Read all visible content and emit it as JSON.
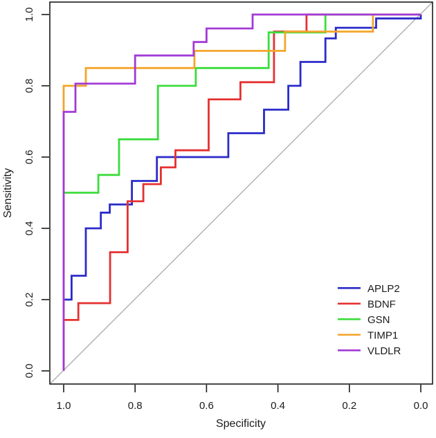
{
  "chart_data": {
    "type": "line",
    "subtype": "roc_step_curves",
    "title": "",
    "xlabel": "Specificity",
    "ylabel": "Sensitivity",
    "x_axis_reversed": true,
    "xlim": [
      1.0,
      0.0
    ],
    "ylim": [
      0.0,
      1.0
    ],
    "grid": false,
    "diagonal_reference_line": true,
    "diagonal_color": "#ababab",
    "axis_color": "#1a1a1a",
    "background_color": "#ffffff",
    "legend_position": "bottomright",
    "x_ticks": {
      "values": [
        1.0,
        0.8,
        0.6,
        0.4,
        0.2,
        0.0
      ],
      "labels": [
        "1.0",
        "0.8",
        "0.6",
        "0.4",
        "0.2",
        "0.0"
      ]
    },
    "y_ticks": {
      "values": [
        0.0,
        0.2,
        0.4,
        0.6,
        0.8,
        1.0
      ],
      "labels": [
        "0.0",
        "0.2",
        "0.4",
        "0.6",
        "0.8",
        "1.0"
      ]
    },
    "points_format": "[specificity, sensitivity]",
    "series": [
      {
        "name": "APLP2",
        "color": "#2a2aca",
        "points": [
          [
            1.0,
            0.0
          ],
          [
            1.0,
            0.2
          ],
          [
            0.978,
            0.267
          ],
          [
            0.938,
            0.4
          ],
          [
            0.896,
            0.444
          ],
          [
            0.871,
            0.467
          ],
          [
            0.809,
            0.533
          ],
          [
            0.739,
            0.6
          ],
          [
            0.539,
            0.667
          ],
          [
            0.439,
            0.733
          ],
          [
            0.371,
            0.8
          ],
          [
            0.337,
            0.867
          ],
          [
            0.267,
            0.933
          ],
          [
            0.238,
            0.963
          ],
          [
            0.125,
            0.989
          ],
          [
            0.0,
            1.0
          ]
        ]
      },
      {
        "name": "BDNF",
        "color": "#e53030",
        "points": [
          [
            1.0,
            0.0
          ],
          [
            1.0,
            0.143
          ],
          [
            0.959,
            0.19
          ],
          [
            0.87,
            0.333
          ],
          [
            0.821,
            0.476
          ],
          [
            0.777,
            0.524
          ],
          [
            0.728,
            0.571
          ],
          [
            0.687,
            0.619
          ],
          [
            0.594,
            0.762
          ],
          [
            0.505,
            0.81
          ],
          [
            0.411,
            0.952
          ],
          [
            0.32,
            1.0
          ],
          [
            0.0,
            1.0
          ]
        ]
      },
      {
        "name": "GSN",
        "color": "#3bdc3b",
        "points": [
          [
            1.0,
            0.0
          ],
          [
            1.0,
            0.5
          ],
          [
            0.903,
            0.55
          ],
          [
            0.845,
            0.65
          ],
          [
            0.736,
            0.8
          ],
          [
            0.63,
            0.85
          ],
          [
            0.426,
            0.95
          ],
          [
            0.267,
            1.0
          ],
          [
            0.0,
            1.0
          ]
        ]
      },
      {
        "name": "TIMP1",
        "color": "#f4a52b",
        "points": [
          [
            1.0,
            0.0
          ],
          [
            1.0,
            0.8
          ],
          [
            0.938,
            0.85
          ],
          [
            0.634,
            0.898
          ],
          [
            0.38,
            0.952
          ],
          [
            0.134,
            1.0
          ],
          [
            0.0,
            1.0
          ]
        ]
      },
      {
        "name": "VLDLR",
        "color": "#a23ad6",
        "points": [
          [
            1.0,
            0.0
          ],
          [
            1.0,
            0.727
          ],
          [
            0.967,
            0.806
          ],
          [
            0.8,
            0.885
          ],
          [
            0.636,
            0.923
          ],
          [
            0.6,
            0.961
          ],
          [
            0.471,
            1.0
          ],
          [
            0.0,
            1.0
          ]
        ]
      }
    ]
  }
}
